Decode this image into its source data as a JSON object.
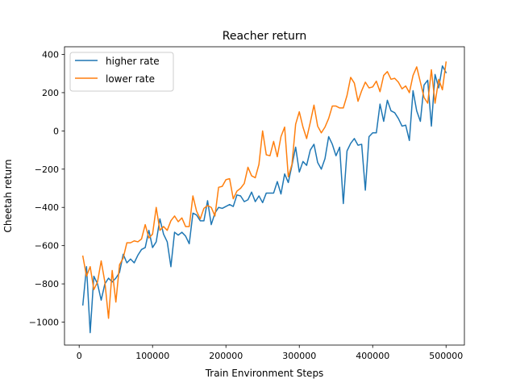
{
  "chart_data": {
    "type": "line",
    "title": "Reacher return",
    "xlabel": "Train Environment Steps",
    "ylabel": "Cheetah return",
    "xlim": [
      -20000,
      525000
    ],
    "ylim": [
      -1120,
      440
    ],
    "xticks": [
      0,
      100000,
      200000,
      300000,
      400000,
      500000
    ],
    "xtick_labels": [
      "0",
      "100000",
      "200000",
      "300000",
      "400000",
      "500000"
    ],
    "yticks": [
      -1000,
      -800,
      -600,
      -400,
      -200,
      0,
      200,
      400
    ],
    "ytick_labels": [
      "−1000",
      "−800",
      "−600",
      "−400",
      "−200",
      "0",
      "200",
      "400"
    ],
    "grid": false,
    "legend_position": "top-left",
    "series": [
      {
        "name": "higher rate",
        "color": "#1f77b4",
        "points": [
          [
            5000,
            -910
          ],
          [
            10000,
            -710
          ],
          [
            15000,
            -1055
          ],
          [
            20000,
            -760
          ],
          [
            25000,
            -800
          ],
          [
            30000,
            -885
          ],
          [
            35000,
            -800
          ],
          [
            40000,
            -770
          ],
          [
            45000,
            -790
          ],
          [
            50000,
            -770
          ],
          [
            55000,
            -740
          ],
          [
            60000,
            -645
          ],
          [
            65000,
            -690
          ],
          [
            70000,
            -670
          ],
          [
            75000,
            -690
          ],
          [
            80000,
            -650
          ],
          [
            85000,
            -620
          ],
          [
            90000,
            -610
          ],
          [
            95000,
            -520
          ],
          [
            100000,
            -610
          ],
          [
            105000,
            -580
          ],
          [
            110000,
            -460
          ],
          [
            115000,
            -540
          ],
          [
            120000,
            -580
          ],
          [
            125000,
            -710
          ],
          [
            130000,
            -530
          ],
          [
            135000,
            -545
          ],
          [
            140000,
            -530
          ],
          [
            145000,
            -550
          ],
          [
            150000,
            -590
          ],
          [
            155000,
            -430
          ],
          [
            160000,
            -440
          ],
          [
            165000,
            -470
          ],
          [
            170000,
            -470
          ],
          [
            175000,
            -365
          ],
          [
            180000,
            -490
          ],
          [
            185000,
            -430
          ],
          [
            190000,
            -400
          ],
          [
            195000,
            -405
          ],
          [
            200000,
            -395
          ],
          [
            205000,
            -385
          ],
          [
            210000,
            -395
          ],
          [
            215000,
            -335
          ],
          [
            220000,
            -340
          ],
          [
            225000,
            -370
          ],
          [
            230000,
            -360
          ],
          [
            235000,
            -320
          ],
          [
            240000,
            -370
          ],
          [
            245000,
            -340
          ],
          [
            250000,
            -375
          ],
          [
            255000,
            -325
          ],
          [
            260000,
            -325
          ],
          [
            265000,
            -325
          ],
          [
            270000,
            -265
          ],
          [
            275000,
            -330
          ],
          [
            280000,
            -225
          ],
          [
            285000,
            -270
          ],
          [
            290000,
            -180
          ],
          [
            295000,
            -85
          ],
          [
            300000,
            -215
          ],
          [
            305000,
            -160
          ],
          [
            310000,
            -180
          ],
          [
            315000,
            -100
          ],
          [
            320000,
            -70
          ],
          [
            325000,
            -165
          ],
          [
            330000,
            -200
          ],
          [
            335000,
            -145
          ],
          [
            340000,
            -30
          ],
          [
            345000,
            -70
          ],
          [
            350000,
            -130
          ],
          [
            355000,
            -85
          ],
          [
            360000,
            -380
          ],
          [
            365000,
            -105
          ],
          [
            370000,
            -65
          ],
          [
            375000,
            -40
          ],
          [
            380000,
            -75
          ],
          [
            385000,
            -70
          ],
          [
            390000,
            -310
          ],
          [
            395000,
            -30
          ],
          [
            400000,
            -10
          ],
          [
            405000,
            -10
          ],
          [
            410000,
            140
          ],
          [
            415000,
            50
          ],
          [
            420000,
            160
          ],
          [
            425000,
            105
          ],
          [
            430000,
            95
          ],
          [
            435000,
            65
          ],
          [
            440000,
            25
          ],
          [
            445000,
            30
          ],
          [
            450000,
            -50
          ],
          [
            455000,
            210
          ],
          [
            460000,
            105
          ],
          [
            465000,
            50
          ],
          [
            470000,
            240
          ],
          [
            475000,
            265
          ],
          [
            480000,
            25
          ],
          [
            485000,
            295
          ],
          [
            490000,
            225
          ],
          [
            495000,
            340
          ],
          [
            500000,
            305
          ]
        ]
      },
      {
        "name": "lower rate",
        "color": "#ff7f0e",
        "points": [
          [
            5000,
            -655
          ],
          [
            10000,
            -760
          ],
          [
            15000,
            -710
          ],
          [
            20000,
            -830
          ],
          [
            25000,
            -790
          ],
          [
            30000,
            -680
          ],
          [
            35000,
            -790
          ],
          [
            40000,
            -980
          ],
          [
            45000,
            -730
          ],
          [
            50000,
            -895
          ],
          [
            55000,
            -700
          ],
          [
            60000,
            -665
          ],
          [
            65000,
            -585
          ],
          [
            70000,
            -585
          ],
          [
            75000,
            -575
          ],
          [
            80000,
            -580
          ],
          [
            85000,
            -565
          ],
          [
            90000,
            -490
          ],
          [
            95000,
            -560
          ],
          [
            100000,
            -540
          ],
          [
            105000,
            -400
          ],
          [
            110000,
            -520
          ],
          [
            115000,
            -500
          ],
          [
            120000,
            -520
          ],
          [
            125000,
            -470
          ],
          [
            130000,
            -445
          ],
          [
            135000,
            -475
          ],
          [
            140000,
            -455
          ],
          [
            145000,
            -500
          ],
          [
            150000,
            -500
          ],
          [
            155000,
            -340
          ],
          [
            160000,
            -420
          ],
          [
            165000,
            -460
          ],
          [
            170000,
            -405
          ],
          [
            175000,
            -390
          ],
          [
            180000,
            -400
          ],
          [
            185000,
            -445
          ],
          [
            190000,
            -295
          ],
          [
            195000,
            -290
          ],
          [
            200000,
            -255
          ],
          [
            205000,
            -250
          ],
          [
            210000,
            -355
          ],
          [
            215000,
            -315
          ],
          [
            220000,
            -300
          ],
          [
            225000,
            -275
          ],
          [
            230000,
            -190
          ],
          [
            235000,
            -235
          ],
          [
            240000,
            -245
          ],
          [
            245000,
            -175
          ],
          [
            250000,
            0
          ],
          [
            255000,
            -125
          ],
          [
            260000,
            -130
          ],
          [
            265000,
            -55
          ],
          [
            270000,
            -135
          ],
          [
            275000,
            -30
          ],
          [
            280000,
            20
          ],
          [
            285000,
            -240
          ],
          [
            290000,
            -175
          ],
          [
            295000,
            35
          ],
          [
            300000,
            100
          ],
          [
            305000,
            20
          ],
          [
            310000,
            -40
          ],
          [
            315000,
            45
          ],
          [
            320000,
            135
          ],
          [
            325000,
            25
          ],
          [
            330000,
            -10
          ],
          [
            335000,
            20
          ],
          [
            340000,
            65
          ],
          [
            345000,
            130
          ],
          [
            350000,
            130
          ],
          [
            355000,
            120
          ],
          [
            360000,
            120
          ],
          [
            365000,
            185
          ],
          [
            370000,
            280
          ],
          [
            375000,
            250
          ],
          [
            380000,
            155
          ],
          [
            385000,
            210
          ],
          [
            390000,
            255
          ],
          [
            395000,
            225
          ],
          [
            400000,
            230
          ],
          [
            405000,
            260
          ],
          [
            410000,
            205
          ],
          [
            415000,
            290
          ],
          [
            420000,
            310
          ],
          [
            425000,
            270
          ],
          [
            430000,
            275
          ],
          [
            435000,
            255
          ],
          [
            440000,
            220
          ],
          [
            445000,
            235
          ],
          [
            450000,
            200
          ],
          [
            455000,
            290
          ],
          [
            460000,
            335
          ],
          [
            465000,
            255
          ],
          [
            470000,
            175
          ],
          [
            475000,
            145
          ],
          [
            480000,
            320
          ],
          [
            485000,
            145
          ],
          [
            490000,
            270
          ],
          [
            495000,
            215
          ],
          [
            500000,
            360
          ]
        ]
      }
    ]
  }
}
